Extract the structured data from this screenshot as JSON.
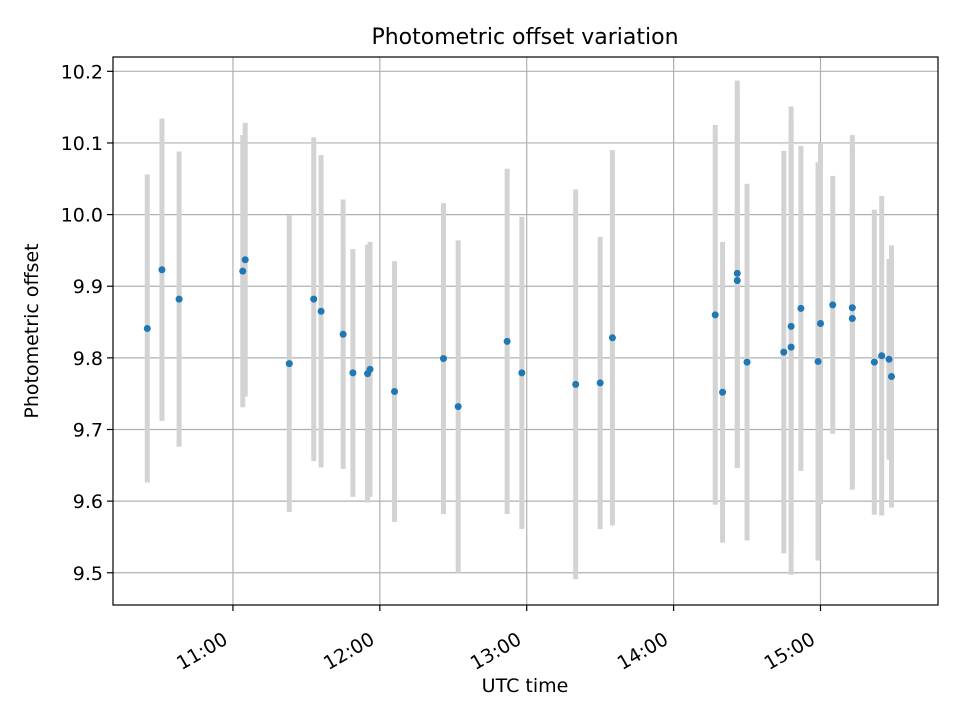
{
  "chart_data": {
    "type": "scatter",
    "title": "Photometric offset variation",
    "xlabel": "UTC time",
    "ylabel": "Photometric offset",
    "x_unit": "UTC hour",
    "xlim": [
      "10:11",
      "15:48"
    ],
    "ylim": [
      9.455,
      10.22
    ],
    "x_ticks": [
      "11:00",
      "12:00",
      "13:00",
      "14:00",
      "15:00"
    ],
    "y_ticks": [
      "9.5",
      "9.6",
      "9.7",
      "9.8",
      "9.9",
      "10.0",
      "10.1",
      "10.2"
    ],
    "grid": true,
    "colors": {
      "points": "#1f77b4",
      "errorbars": "#d3d3d3",
      "grid": "#b0b0b0"
    },
    "series": [
      {
        "points": [
          {
            "x": "10:25",
            "y": 9.841,
            "yerr": 0.215
          },
          {
            "x": "10:31",
            "y": 9.923,
            "yerr": 0.211
          },
          {
            "x": "10:38",
            "y": 9.882,
            "yerr": 0.206
          },
          {
            "x": "11:04",
            "y": 9.921,
            "yerr": 0.19
          },
          {
            "x": "11:05",
            "y": 9.937,
            "yerr": 0.191
          },
          {
            "x": "11:23",
            "y": 9.792,
            "yerr": 0.207
          },
          {
            "x": "11:33",
            "y": 9.882,
            "yerr": 0.226
          },
          {
            "x": "11:36",
            "y": 9.865,
            "yerr": 0.218
          },
          {
            "x": "11:45",
            "y": 9.833,
            "yerr": 0.188
          },
          {
            "x": "11:49",
            "y": 9.779,
            "yerr": 0.173
          },
          {
            "x": "11:55",
            "y": 9.778,
            "yerr": 0.18
          },
          {
            "x": "11:56",
            "y": 9.784,
            "yerr": 0.178
          },
          {
            "x": "12:06",
            "y": 9.753,
            "yerr": 0.182
          },
          {
            "x": "12:26",
            "y": 9.799,
            "yerr": 0.217
          },
          {
            "x": "12:32",
            "y": 9.732,
            "yerr": 0.232
          },
          {
            "x": "12:52",
            "y": 9.823,
            "yerr": 0.241
          },
          {
            "x": "12:58",
            "y": 9.779,
            "yerr": 0.218
          },
          {
            "x": "13:20",
            "y": 9.763,
            "yerr": 0.272
          },
          {
            "x": "13:30",
            "y": 9.765,
            "yerr": 0.204
          },
          {
            "x": "13:35",
            "y": 9.828,
            "yerr": 0.262
          },
          {
            "x": "14:17",
            "y": 9.86,
            "yerr": 0.265
          },
          {
            "x": "14:20",
            "y": 9.752,
            "yerr": 0.21
          },
          {
            "x": "14:26",
            "y": 9.908,
            "yerr": 0.262
          },
          {
            "x": "14:26",
            "y": 9.918,
            "yerr": 0.269
          },
          {
            "x": "14:30",
            "y": 9.794,
            "yerr": 0.249
          },
          {
            "x": "14:45",
            "y": 9.808,
            "yerr": 0.281
          },
          {
            "x": "14:48",
            "y": 9.844,
            "yerr": 0.307
          },
          {
            "x": "14:48",
            "y": 9.815,
            "yerr": 0.318
          },
          {
            "x": "14:52",
            "y": 9.869,
            "yerr": 0.227
          },
          {
            "x": "14:59",
            "y": 9.795,
            "yerr": 0.278
          },
          {
            "x": "15:00",
            "y": 9.848,
            "yerr": 0.252
          },
          {
            "x": "15:05",
            "y": 9.874,
            "yerr": 0.18
          },
          {
            "x": "15:13",
            "y": 9.87,
            "yerr": 0.241
          },
          {
            "x": "15:13",
            "y": 9.855,
            "yerr": 0.239
          },
          {
            "x": "15:22",
            "y": 9.794,
            "yerr": 0.213
          },
          {
            "x": "15:25",
            "y": 9.803,
            "yerr": 0.223
          },
          {
            "x": "15:28",
            "y": 9.798,
            "yerr": 0.14
          },
          {
            "x": "15:29",
            "y": 9.774,
            "yerr": 0.183
          }
        ]
      }
    ]
  }
}
